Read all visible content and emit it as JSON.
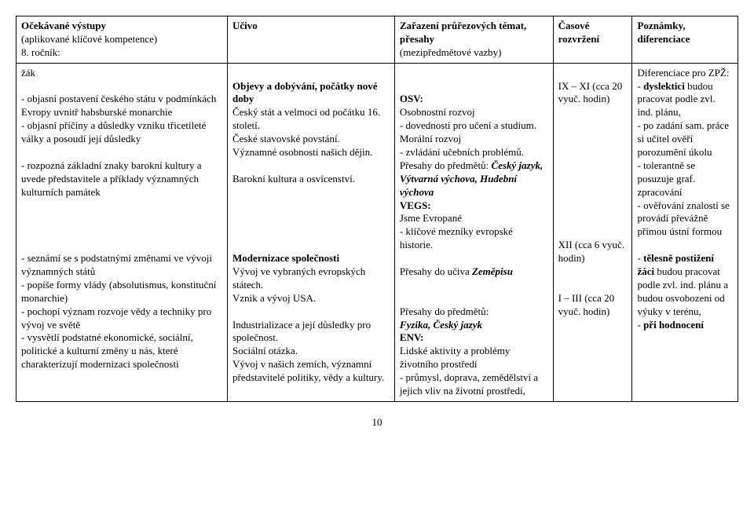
{
  "headers": {
    "c1a": "Očekávané výstupy",
    "c1b": "(aplikované klíčové kompetence)",
    "c1c": "8. ročník:",
    "c2": "Učivo",
    "c3a": "Zařazení průřezových témat, přesahy",
    "c3b": "(mezipředmětové vazby)",
    "c4": "Časové rozvržení",
    "c5": "Poznámky, diferenciace"
  },
  "col1": {
    "zak": "žák",
    "p1": "- objasní postavení českého státu v podmínkách Evropy uvnitř habsburské monarchie",
    "p2": "- objasní příčiny a důsledky vzniku třicetileté války a posoudí její důsledky",
    "p3": "- rozpozná základní znaky barokní kultury a uvede představitele a příklady významných kulturních památek",
    "p4": "- seznámí se s podstatnými změnami ve vývoji významných států",
    "p5": "- popíše formy vlády (absolutismus, konstituční monarchie)",
    "p6": "- pochopí význam rozvoje vědy a techniky pro vývoj ve světě",
    "p7": "- vysvětlí podstatné ekonomické, sociální, politické a kulturní změny u nás, které charakterizují modernizaci společnosti"
  },
  "col2": {
    "h1": "Objevy a dobývání, počátky nové doby",
    "t1": "Český stát a velmoci od počátku 16. století.",
    "t2": "České stavovské povstání.",
    "t3": "Významné osobnosti našich dějin.",
    "t4": "Barokní kultura a osvícenství.",
    "h2": "Modernizace společnosti",
    "t5": "Vývoj ve vybraných evropských státech.",
    "t6": "Vznik a vývoj USA.",
    "t7": "Industrializace a její důsledky pro společnost.",
    "t8": "Sociální otázka.",
    "t9": "Vývoj v našich zemích, významní představitelé politiky, vědy a kultury."
  },
  "col3": {
    "osv": "OSV:",
    "osv1": "Osobnostní rozvoj",
    "osv2": "- dovednosti pro učení a studium.",
    "osv3": "Morální rozvoj",
    "osv4": "- zvládání učebních problémů.",
    "pres1a": "Přesahy do předmětů: ",
    "pres1b": "Český jazyk, Výtvarná výchova, Hudební výchova",
    "vegs": "VEGS:",
    "vegs1": "Jsme Evropané",
    "vegs2": "- klíčové mezníky evropské historie.",
    "pres2a": "Přesahy do učiva ",
    "pres2b": "Zeměpisu",
    "pres3a": "Přesahy do předmětů:",
    "pres3b": "Fyzika, Český jazyk",
    "env": "ENV:",
    "env1": "Lidské aktivity a problémy životního prostředí",
    "env2": "- průmysl, doprava, zemědělství a jejich vliv na životní prostředí,"
  },
  "col4": {
    "t1": "IX – XI (cca 20 vyuč. hodin)",
    "t2": "XII (cca 6 vyuč. hodin)",
    "t3": "I – III (cca 20 vyuč. hodin)"
  },
  "col5": {
    "h1": "Diferenciace pro ZPŽ:",
    "d1a": "- ",
    "d1b": "dyslektici",
    "d1c": " budou pracovat podle zvl. ind. plánu,",
    "d2": "- po zadání sam. práce si učitel ověří porozumění úkolu",
    "d3": "- tolerantně se posuzuje graf. zpracování",
    "d4": "- ověřování znalostí se provádí převážně přímou ústní formou",
    "d5a": "- ",
    "d5b": "tělesně postižení žáci",
    "d5c": " budou pracovat podle zvl. ind. plánu a budou osvobozeni od výuky v terénu,",
    "d6a": "- ",
    "d6b": "při hodnocení"
  },
  "pagenum": "10"
}
